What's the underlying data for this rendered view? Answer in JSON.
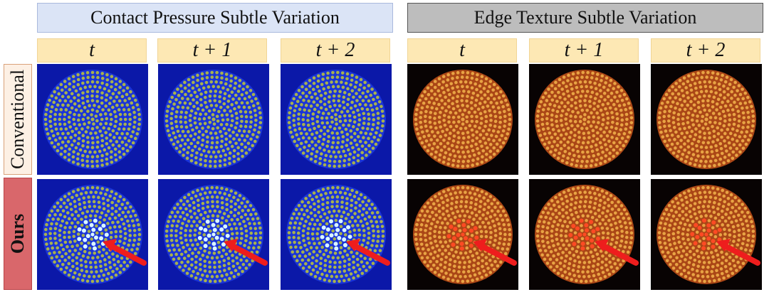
{
  "group_headers": {
    "left": "Contact Pressure Subtle Variation",
    "right": "Edge Texture Subtle Variation"
  },
  "time_labels": [
    "t",
    "t + 1",
    "t + 2",
    "t",
    "t + 1",
    "t + 2"
  ],
  "row_labels": {
    "conventional": "Conventional",
    "ours": "Ours"
  },
  "tile_styles": {
    "pressure": {
      "bg": "#0b18a8",
      "disk": "#1d3ae0",
      "dot": "#a7b14e",
      "hot": "#dbf7ff"
    },
    "texture": {
      "bg": "#080303",
      "disk": "#c7521a",
      "dot": "#e8a344",
      "hot": "#ff4a24"
    }
  },
  "arrow_color": "#ee1d1d"
}
